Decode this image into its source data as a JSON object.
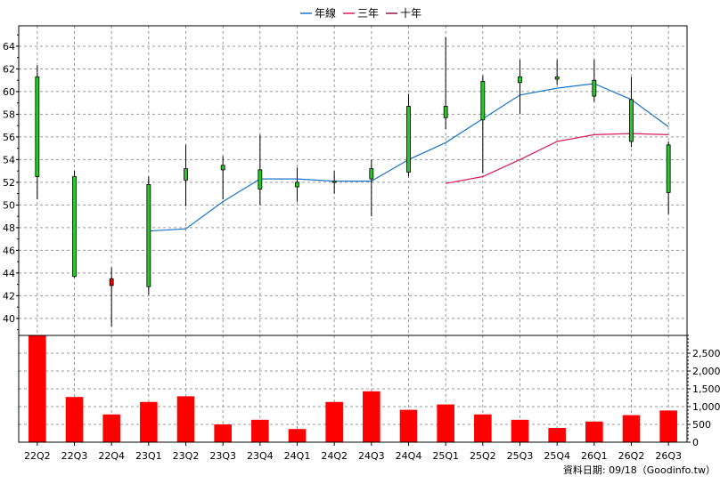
{
  "legend": {
    "items": [
      {
        "label": "年線",
        "color": "#1a73c9"
      },
      {
        "label": "三年",
        "color": "#d81b60"
      },
      {
        "label": "十年",
        "color": "#a0134a"
      }
    ]
  },
  "footer_note": "資料日期: 09/18（Goodinfo.tw）",
  "chart_data": [
    {
      "type": "candlestick",
      "categories": [
        "22Q2",
        "22Q3",
        "22Q4",
        "23Q1",
        "23Q2",
        "23Q3",
        "23Q4",
        "24Q1",
        "24Q2",
        "24Q3",
        "24Q4",
        "25Q1",
        "25Q2",
        "25Q3",
        "25Q4",
        "26Q1",
        "26Q2",
        "26Q3"
      ],
      "ohlc": [
        {
          "open": 52.5,
          "high": 62.3,
          "low": 50.5,
          "close": 61.3
        },
        {
          "open": 43.7,
          "high": 53.0,
          "low": 43.6,
          "close": 52.5
        },
        {
          "open": 43.5,
          "high": 44.5,
          "low": 39.3,
          "close": 42.9
        },
        {
          "open": 42.8,
          "high": 52.5,
          "low": 42.1,
          "close": 51.8
        },
        {
          "open": 52.2,
          "high": 55.3,
          "low": 49.9,
          "close": 53.2
        },
        {
          "open": 53.1,
          "high": 54.3,
          "low": 50.5,
          "close": 53.5
        },
        {
          "open": 51.4,
          "high": 56.2,
          "low": 50.0,
          "close": 53.1
        },
        {
          "open": 51.6,
          "high": 53.3,
          "low": 50.3,
          "close": 52.0
        },
        {
          "open": 52.0,
          "high": 53.0,
          "low": 51.0,
          "close": 52.1
        },
        {
          "open": 52.3,
          "high": 54.0,
          "low": 49.0,
          "close": 53.2
        },
        {
          "open": 52.9,
          "high": 59.8,
          "low": 52.5,
          "close": 58.7
        },
        {
          "open": 57.7,
          "high": 64.8,
          "low": 56.7,
          "close": 58.7
        },
        {
          "open": 57.5,
          "high": 61.4,
          "low": 52.8,
          "close": 60.9
        },
        {
          "open": 60.8,
          "high": 62.8,
          "low": 58.0,
          "close": 61.3
        },
        {
          "open": 61.1,
          "high": 62.8,
          "low": 60.6,
          "close": 61.3
        },
        {
          "open": 59.6,
          "high": 62.8,
          "low": 59.1,
          "close": 61.0
        },
        {
          "open": 55.6,
          "high": 61.3,
          "low": 55.1,
          "close": 59.3
        },
        {
          "open": 51.1,
          "high": 55.6,
          "low": 49.2,
          "close": 55.3
        }
      ],
      "series": [
        {
          "name": "年線",
          "color": "#1a73c9",
          "values": [
            null,
            null,
            null,
            47.7,
            47.9,
            50.3,
            52.3,
            52.3,
            52.1,
            52.1,
            54.0,
            55.5,
            57.6,
            59.7,
            60.3,
            60.7,
            59.3,
            56.9
          ]
        },
        {
          "name": "三年",
          "color": "#d81b60",
          "values": [
            null,
            null,
            null,
            null,
            null,
            null,
            null,
            null,
            null,
            null,
            null,
            51.9,
            52.5,
            54.0,
            55.6,
            56.2,
            56.3,
            56.2
          ]
        },
        {
          "name": "十年",
          "color": "#a0134a",
          "values": [
            null,
            null,
            null,
            null,
            null,
            null,
            null,
            null,
            null,
            null,
            null,
            null,
            null,
            null,
            null,
            null,
            null,
            null
          ]
        }
      ],
      "yticks": [
        40,
        42,
        44,
        46,
        48,
        50,
        52,
        54,
        56,
        58,
        60,
        62,
        64
      ],
      "ylim": [
        38.5,
        65.8
      ],
      "grid": true
    },
    {
      "type": "bar",
      "categories": [
        "22Q2",
        "22Q3",
        "22Q4",
        "23Q1",
        "23Q2",
        "23Q3",
        "23Q4",
        "24Q1",
        "24Q2",
        "24Q3",
        "24Q4",
        "25Q1",
        "25Q2",
        "25Q3",
        "25Q4",
        "26Q1",
        "26Q2",
        "26Q3"
      ],
      "values": [
        3000,
        1270,
        780,
        1130,
        1290,
        500,
        630,
        370,
        1130,
        1430,
        910,
        1060,
        780,
        630,
        400,
        580,
        760,
        890
      ],
      "color": "#ff0000",
      "yticks": [
        0,
        500,
        1000,
        1500,
        2000,
        2500
      ],
      "ytick_labels": [
        "0",
        "500",
        "1,000",
        "1,500",
        "2,000",
        "2,500"
      ],
      "ylim": [
        0,
        3000
      ],
      "grid": true
    }
  ]
}
